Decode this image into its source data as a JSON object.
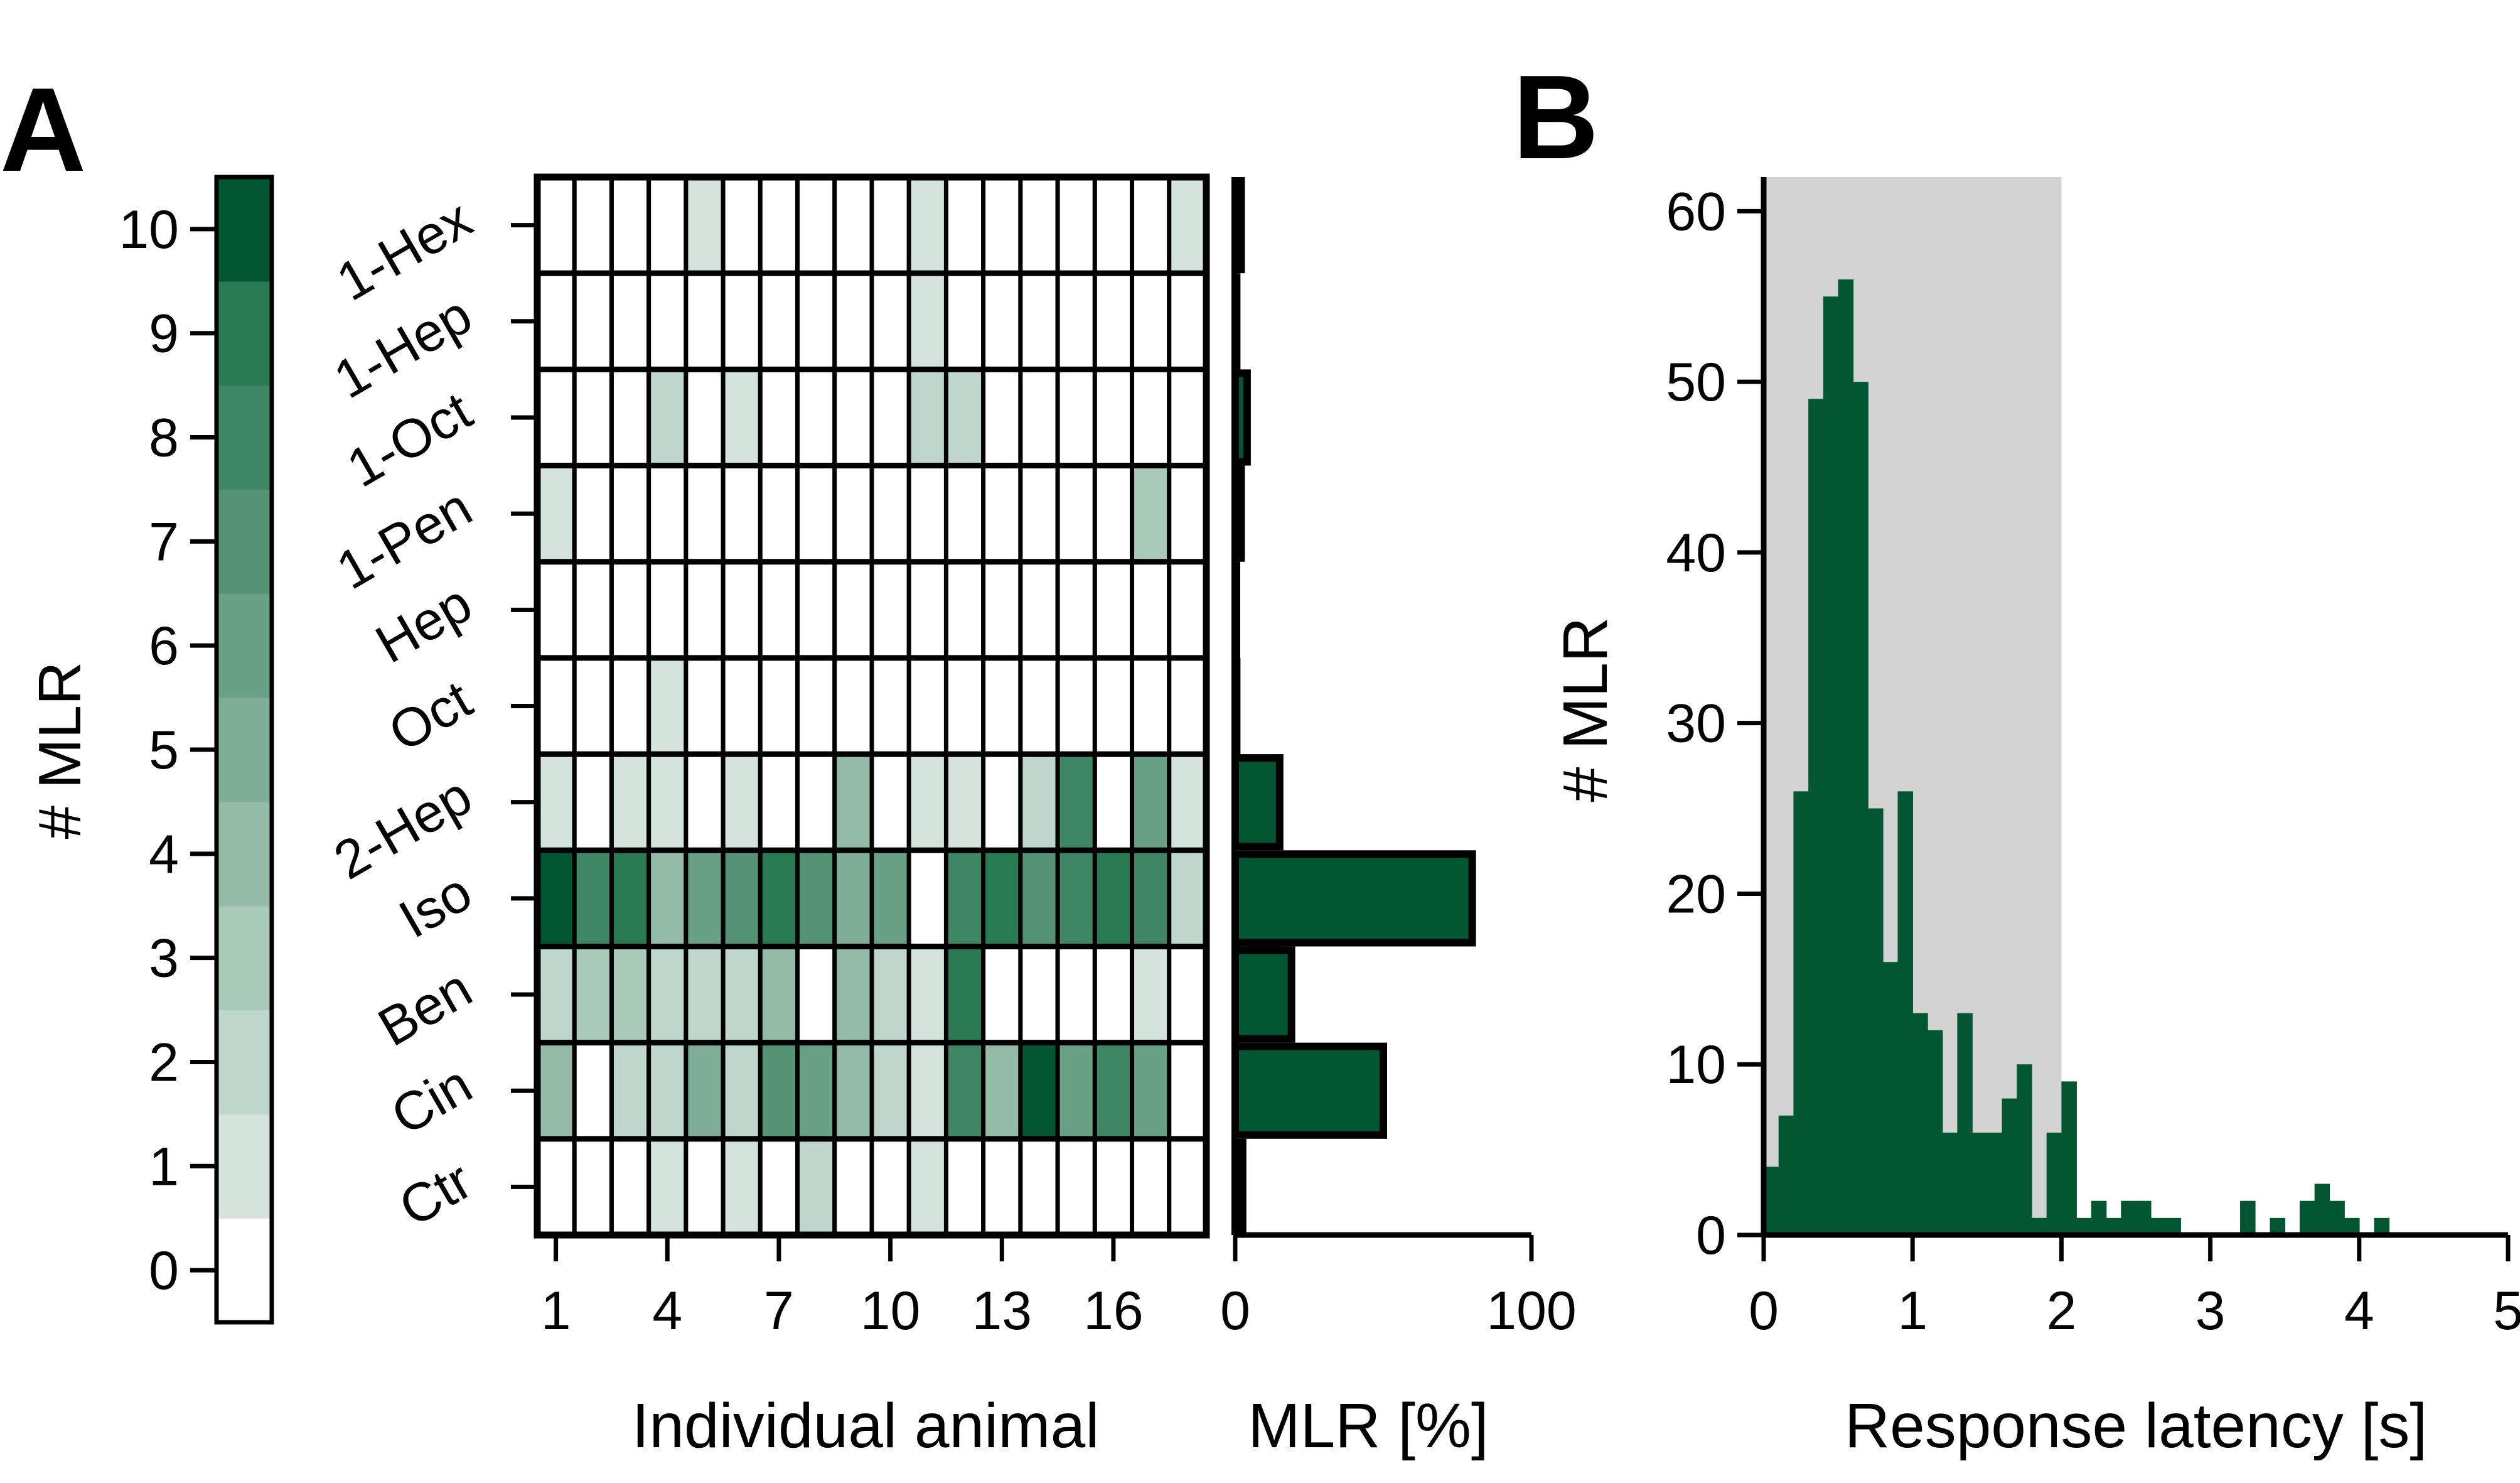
{
  "panels": {
    "a": {
      "letter": "A"
    },
    "b": {
      "letter": "B"
    }
  },
  "colors": {
    "palette": [
      "#ffffff",
      "#d4e4dc",
      "#bed6cb",
      "#a9c9b9",
      "#94bba8",
      "#7eae97",
      "#69a186",
      "#549475",
      "#3e8664",
      "#297953",
      "#035632"
    ],
    "bar": "#035632",
    "shade": "#d3d3d3",
    "edge": "#000000"
  },
  "chart_data": [
    {
      "type": "colorbar",
      "ylabel": "# MLR",
      "range": [
        0,
        10
      ],
      "ticks": [
        0,
        1,
        2,
        3,
        4,
        5,
        6,
        7,
        8,
        9,
        10
      ],
      "tick_labels": [
        "0",
        "1",
        "2",
        "3",
        "4",
        "5",
        "6",
        "7",
        "8",
        "9",
        "10"
      ]
    },
    {
      "type": "heatmap",
      "xlabel": "Individual animal",
      "rows": [
        "1-Hex",
        "1-Hep",
        "1-Oct",
        "1-Pen",
        "Hep",
        "Oct",
        "2-Hep",
        "Iso",
        "Ben",
        "Cin",
        "Ctr"
      ],
      "xticks": [
        1,
        4,
        7,
        10,
        13,
        16
      ],
      "xtick_labels": [
        "1",
        "4",
        "7",
        "10",
        "13",
        "16"
      ],
      "n_animals": 18,
      "values": [
        [
          0,
          0,
          0,
          0,
          1,
          0,
          0,
          0,
          0,
          0,
          1,
          0,
          0,
          0,
          0,
          0,
          0,
          1
        ],
        [
          0,
          0,
          0,
          0,
          0,
          0,
          0,
          0,
          0,
          0,
          1,
          0,
          0,
          0,
          0,
          0,
          0,
          0
        ],
        [
          0,
          0,
          0,
          2,
          0,
          1,
          0,
          0,
          0,
          0,
          2,
          2,
          0,
          0,
          0,
          0,
          0,
          0
        ],
        [
          1,
          0,
          0,
          0,
          0,
          0,
          0,
          0,
          0,
          0,
          0,
          0,
          0,
          0,
          0,
          0,
          3,
          0
        ],
        [
          0,
          0,
          0,
          0,
          0,
          0,
          0,
          0,
          0,
          0,
          0,
          0,
          0,
          0,
          0,
          0,
          0,
          0
        ],
        [
          0,
          0,
          0,
          1,
          0,
          0,
          0,
          0,
          0,
          0,
          0,
          0,
          0,
          0,
          0,
          0,
          0,
          0
        ],
        [
          1,
          0,
          1,
          1,
          0,
          1,
          0,
          0,
          4,
          0,
          1,
          1,
          0,
          2,
          8,
          0,
          6,
          1
        ],
        [
          10,
          8,
          9,
          4,
          6,
          7,
          9,
          7,
          5,
          6,
          0,
          8,
          9,
          7,
          8,
          9,
          8,
          2
        ],
        [
          2,
          3,
          3,
          2,
          2,
          2,
          4,
          0,
          4,
          2,
          1,
          9,
          0,
          0,
          0,
          0,
          1,
          0
        ],
        [
          4,
          0,
          2,
          2,
          5,
          2,
          7,
          6,
          4,
          2,
          1,
          8,
          4,
          10,
          6,
          8,
          6,
          0
        ],
        [
          0,
          0,
          0,
          1,
          0,
          1,
          0,
          2,
          0,
          0,
          1,
          0,
          0,
          0,
          0,
          0,
          0,
          0
        ]
      ],
      "colorbar_range": [
        0,
        10
      ]
    },
    {
      "type": "bar",
      "orientation": "horizontal",
      "xlabel": "MLR [%]",
      "xticks": [
        0,
        100
      ],
      "xtick_labels": [
        "0",
        "100"
      ],
      "xlim": [
        0,
        100
      ],
      "categories": [
        "1-Hex",
        "1-Hep",
        "1-Oct",
        "1-Pen",
        "Hep",
        "Oct",
        "2-Hep",
        "Iso",
        "Ben",
        "Cin",
        "Ctr"
      ],
      "values": [
        2.0,
        0.5,
        4.0,
        2.0,
        0.0,
        0.5,
        15.0,
        80.0,
        19.0,
        50.0,
        2.5
      ]
    },
    {
      "type": "bar",
      "subtype": "histogram",
      "xlabel": "Response latency [s]",
      "ylabel": "# MLR",
      "xlim": [
        0,
        5
      ],
      "ylim": [
        0,
        62
      ],
      "xticks": [
        0,
        1,
        2,
        3,
        4,
        5
      ],
      "xtick_labels": [
        "0",
        "1",
        "2",
        "3",
        "4",
        "5"
      ],
      "yticks": [
        0,
        10,
        20,
        30,
        40,
        50,
        60
      ],
      "ytick_labels": [
        "0",
        "10",
        "20",
        "30",
        "40",
        "50",
        "60"
      ],
      "bin_width": 0.1,
      "bin_start": 0.0,
      "values": [
        4,
        7,
        26,
        49,
        55,
        56,
        50,
        25,
        16,
        26,
        13,
        12,
        6,
        13,
        6,
        6,
        8,
        10,
        1,
        6,
        9,
        1,
        2,
        1,
        2,
        2,
        1,
        1,
        0,
        0,
        0,
        0,
        2,
        0,
        1,
        0,
        2,
        3,
        2,
        1,
        0,
        1
      ],
      "shaded_region": [
        0,
        2
      ]
    }
  ]
}
